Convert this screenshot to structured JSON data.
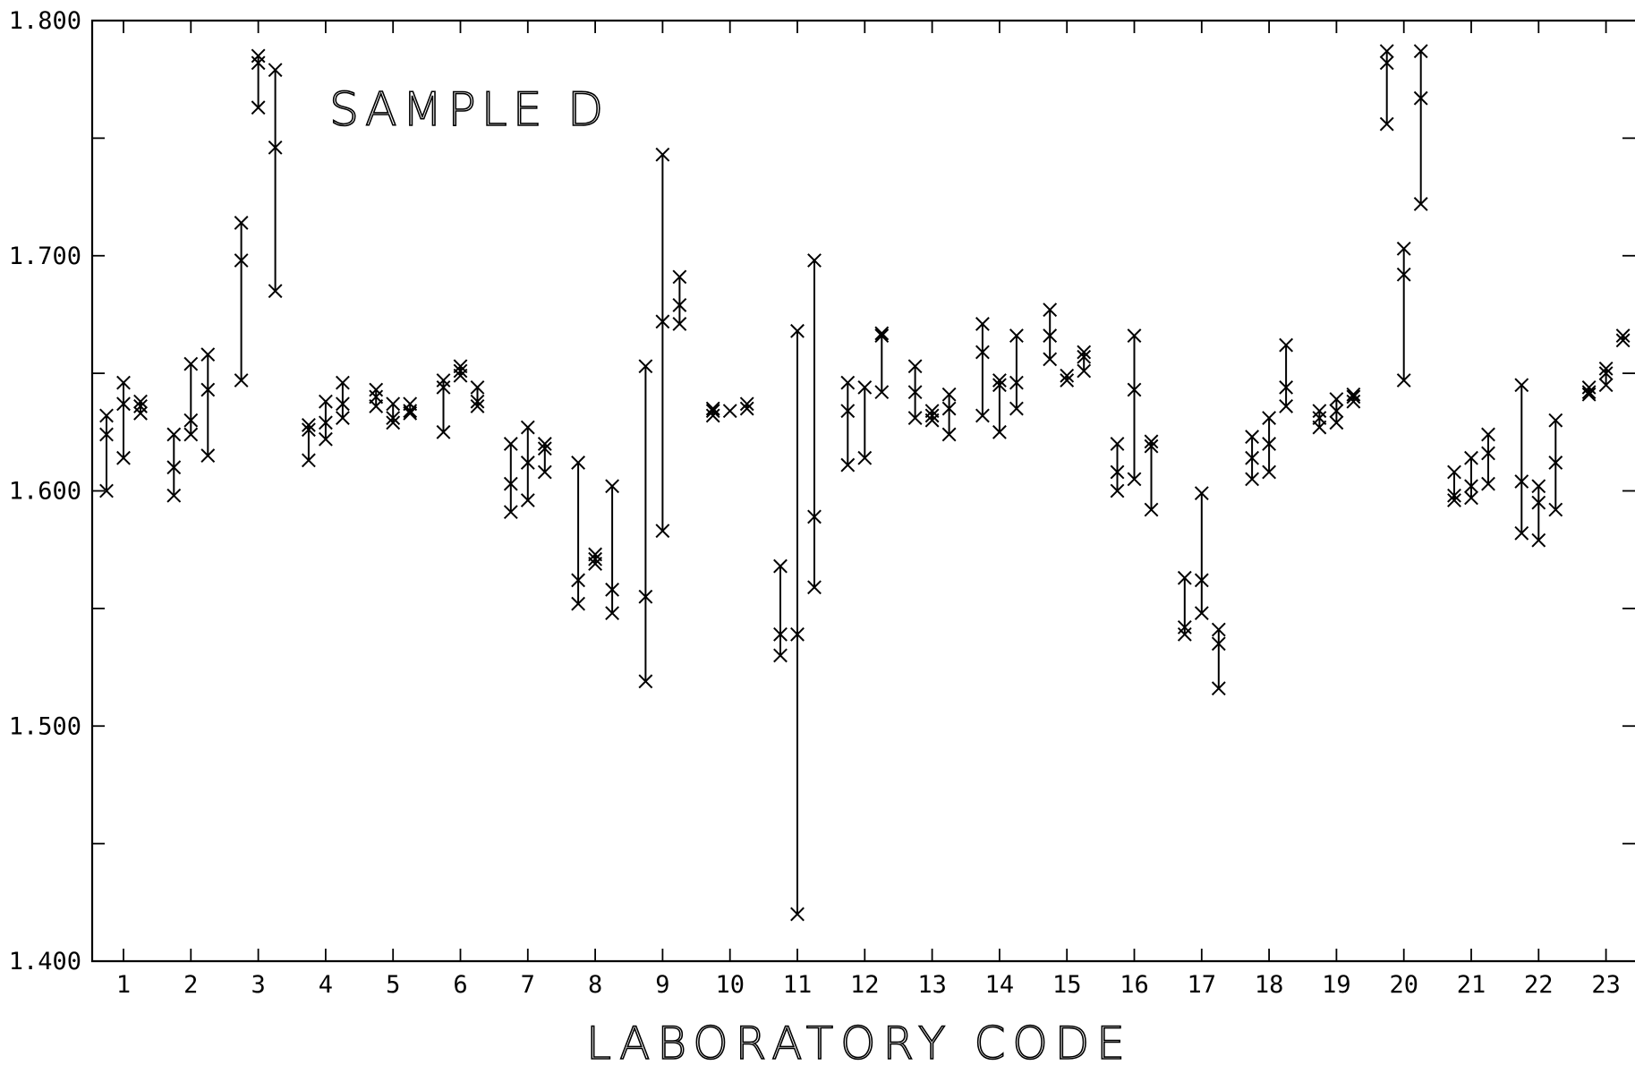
{
  "chart_data": {
    "type": "scatter",
    "title": "SAMPLE D",
    "xlabel": "LABORATORY CODE",
    "ylabel": "",
    "ylim": [
      1.4,
      1.8
    ],
    "y_tick_values": [
      1.4,
      1.45,
      1.5,
      1.55,
      1.6,
      1.65,
      1.7,
      1.75,
      1.8
    ],
    "y_tick_labels": [
      "1.400",
      "",
      "1.500",
      "",
      "1.600",
      "",
      "1.700",
      "",
      "1.800"
    ],
    "categories": [
      "1",
      "2",
      "3",
      "4",
      "5",
      "6",
      "7",
      "8",
      "9",
      "10",
      "11",
      "12",
      "13",
      "14",
      "15",
      "16",
      "17",
      "18",
      "19",
      "20",
      "21",
      "22",
      "23"
    ],
    "marker": "x",
    "grid": false,
    "labs": [
      {
        "lab": "1",
        "subgroups": [
          [
            1.6,
            1.624,
            1.632
          ],
          [
            1.614,
            1.637,
            1.646
          ],
          [
            1.633,
            1.636,
            1.638
          ]
        ]
      },
      {
        "lab": "2",
        "subgroups": [
          [
            1.598,
            1.61,
            1.624
          ],
          [
            1.624,
            1.63,
            1.654
          ],
          [
            1.615,
            1.643,
            1.658
          ]
        ]
      },
      {
        "lab": "3",
        "subgroups": [
          [
            1.647,
            1.698,
            1.714
          ],
          [
            1.763,
            1.782,
            1.785
          ],
          [
            1.685,
            1.746,
            1.779
          ]
        ]
      },
      {
        "lab": "4",
        "subgroups": [
          [
            1.613,
            1.626,
            1.628
          ],
          [
            1.622,
            1.629,
            1.638
          ],
          [
            1.631,
            1.637,
            1.646
          ]
        ]
      },
      {
        "lab": "5",
        "subgroups": [
          [
            1.636,
            1.64,
            1.643
          ],
          [
            1.629,
            1.631,
            1.637
          ],
          [
            1.633,
            1.634,
            1.637
          ]
        ]
      },
      {
        "lab": "6",
        "subgroups": [
          [
            1.625,
            1.644,
            1.647
          ],
          [
            1.649,
            1.651,
            1.653
          ],
          [
            1.636,
            1.638,
            1.644
          ]
        ]
      },
      {
        "lab": "7",
        "subgroups": [
          [
            1.591,
            1.603,
            1.62
          ],
          [
            1.596,
            1.612,
            1.627
          ],
          [
            1.608,
            1.618,
            1.62
          ]
        ]
      },
      {
        "lab": "8",
        "subgroups": [
          [
            1.552,
            1.562,
            1.612
          ],
          [
            1.569,
            1.571,
            1.573
          ],
          [
            1.548,
            1.558,
            1.602
          ]
        ]
      },
      {
        "lab": "9",
        "subgroups": [
          [
            1.519,
            1.555,
            1.653
          ],
          [
            1.583,
            1.672,
            1.743
          ],
          [
            1.671,
            1.679,
            1.691
          ]
        ]
      },
      {
        "lab": "10",
        "subgroups": [
          [
            1.632,
            1.634,
            1.635
          ],
          [
            1.634
          ],
          [
            1.635,
            1.637
          ]
        ]
      },
      {
        "lab": "11",
        "subgroups": [
          [
            1.53,
            1.539,
            1.568
          ],
          [
            1.42,
            1.539,
            1.668
          ],
          [
            1.559,
            1.589,
            1.698
          ]
        ]
      },
      {
        "lab": "12",
        "subgroups": [
          [
            1.611,
            1.634,
            1.646
          ],
          [
            1.614,
            1.644
          ],
          [
            1.642,
            1.666,
            1.667
          ]
        ]
      },
      {
        "lab": "13",
        "subgroups": [
          [
            1.631,
            1.642,
            1.653
          ],
          [
            1.63,
            1.632,
            1.634
          ],
          [
            1.624,
            1.635,
            1.641
          ]
        ]
      },
      {
        "lab": "14",
        "subgroups": [
          [
            1.632,
            1.659,
            1.671
          ],
          [
            1.625,
            1.645,
            1.647
          ],
          [
            1.635,
            1.646,
            1.666
          ]
        ]
      },
      {
        "lab": "15",
        "subgroups": [
          [
            1.656,
            1.666,
            1.677
          ],
          [
            1.647,
            1.649
          ],
          [
            1.651,
            1.657,
            1.659
          ]
        ]
      },
      {
        "lab": "16",
        "subgroups": [
          [
            1.6,
            1.608,
            1.62
          ],
          [
            1.605,
            1.643,
            1.666
          ],
          [
            1.592,
            1.619,
            1.621
          ]
        ]
      },
      {
        "lab": "17",
        "subgroups": [
          [
            1.539,
            1.542,
            1.563
          ],
          [
            1.548,
            1.562,
            1.599
          ],
          [
            1.516,
            1.535,
            1.541
          ]
        ]
      },
      {
        "lab": "18",
        "subgroups": [
          [
            1.605,
            1.614,
            1.623
          ],
          [
            1.608,
            1.62,
            1.631
          ],
          [
            1.636,
            1.644,
            1.662
          ]
        ]
      },
      {
        "lab": "19",
        "subgroups": [
          [
            1.627,
            1.631,
            1.634
          ],
          [
            1.629,
            1.634,
            1.639
          ],
          [
            1.638,
            1.64,
            1.641
          ]
        ]
      },
      {
        "lab": "20",
        "subgroups": [
          [
            1.756,
            1.782,
            1.787
          ],
          [
            1.647,
            1.692,
            1.703
          ],
          [
            1.722,
            1.767,
            1.787
          ]
        ]
      },
      {
        "lab": "21",
        "subgroups": [
          [
            1.596,
            1.598,
            1.608
          ],
          [
            1.597,
            1.602,
            1.614
          ],
          [
            1.603,
            1.616,
            1.624
          ]
        ]
      },
      {
        "lab": "22",
        "subgroups": [
          [
            1.582,
            1.604,
            1.645
          ],
          [
            1.579,
            1.595,
            1.602
          ],
          [
            1.592,
            1.612,
            1.63
          ]
        ]
      },
      {
        "lab": "23",
        "subgroups": [
          [
            1.641,
            1.642,
            1.644
          ],
          [
            1.645,
            1.65,
            1.652
          ],
          [
            1.664,
            1.666
          ]
        ]
      }
    ]
  }
}
